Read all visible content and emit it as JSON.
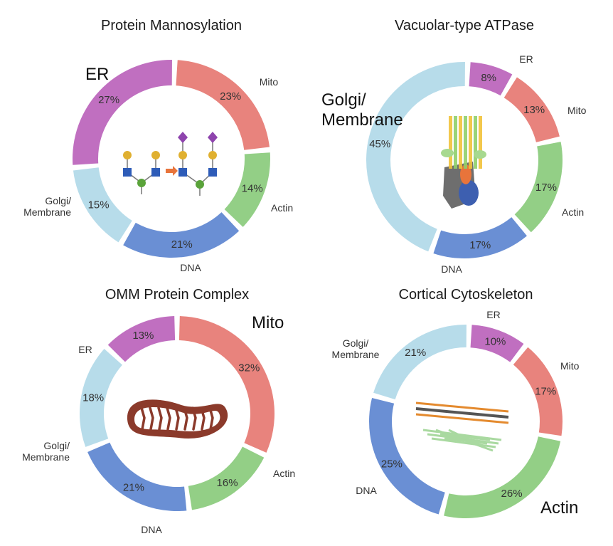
{
  "chart_data": [
    {
      "type": "pie",
      "title": "Protein Mannosylation",
      "series": [
        {
          "name": "Mito",
          "value": 23,
          "label": "23%",
          "color": "#e8837d"
        },
        {
          "name": "Actin",
          "value": 14,
          "label": "14%",
          "color": "#93cf86"
        },
        {
          "name": "DNA",
          "value": 21,
          "label": "21%",
          "color": "#6a8fd4"
        },
        {
          "name": "Golgi/\nMembrane",
          "value": 15,
          "label": "15%",
          "color": "#b7dcea"
        },
        {
          "name": "ER",
          "value": 27,
          "label": "27%",
          "color": "#c06fc0"
        }
      ],
      "highlight": "ER",
      "icon": "glycan-chain-icon"
    },
    {
      "type": "pie",
      "title": "Vacuolar-type ATPase",
      "series": [
        {
          "name": "ER",
          "value": 8,
          "label": "8%",
          "color": "#c06fc0"
        },
        {
          "name": "Mito",
          "value": 13,
          "label": "13%",
          "color": "#e8837d"
        },
        {
          "name": "Actin",
          "value": 17,
          "label": "17%",
          "color": "#93cf86"
        },
        {
          "name": "DNA",
          "value": 17,
          "label": "17%",
          "color": "#6a8fd4"
        },
        {
          "name": "Golgi/\nMembrane",
          "value": 45,
          "label": "45%",
          "color": "#b7dcea"
        }
      ],
      "highlight": "Golgi/\nMembrane",
      "icon": "atpase-complex-icon"
    },
    {
      "type": "pie",
      "title": "OMM Protein Complex",
      "series": [
        {
          "name": "Mito",
          "value": 32,
          "label": "32%",
          "color": "#e8837d"
        },
        {
          "name": "Actin",
          "value": 16,
          "label": "16%",
          "color": "#93cf86"
        },
        {
          "name": "DNA",
          "value": 21,
          "label": "21%",
          "color": "#6a8fd4"
        },
        {
          "name": "Golgi/\nMembrane",
          "value": 18,
          "label": "18%",
          "color": "#b7dcea"
        },
        {
          "name": "ER",
          "value": 13,
          "label": "13%",
          "color": "#c06fc0"
        }
      ],
      "highlight": "Mito",
      "icon": "mitochondrion-icon"
    },
    {
      "type": "pie",
      "title": "Cortical Cytoskeleton",
      "series": [
        {
          "name": "ER",
          "value": 10,
          "label": "10%",
          "color": "#c06fc0"
        },
        {
          "name": "Mito",
          "value": 17,
          "label": "17%",
          "color": "#e8837d"
        },
        {
          "name": "Actin",
          "value": 26,
          "label": "26%",
          "color": "#93cf86"
        },
        {
          "name": "DNA",
          "value": 25,
          "label": "25%",
          "color": "#6a8fd4"
        },
        {
          "name": "Golgi/\nMembrane",
          "value": 21,
          "label": "21%",
          "color": "#b7dcea"
        }
      ],
      "highlight": "Actin",
      "icon": "membrane-actin-icon"
    }
  ]
}
